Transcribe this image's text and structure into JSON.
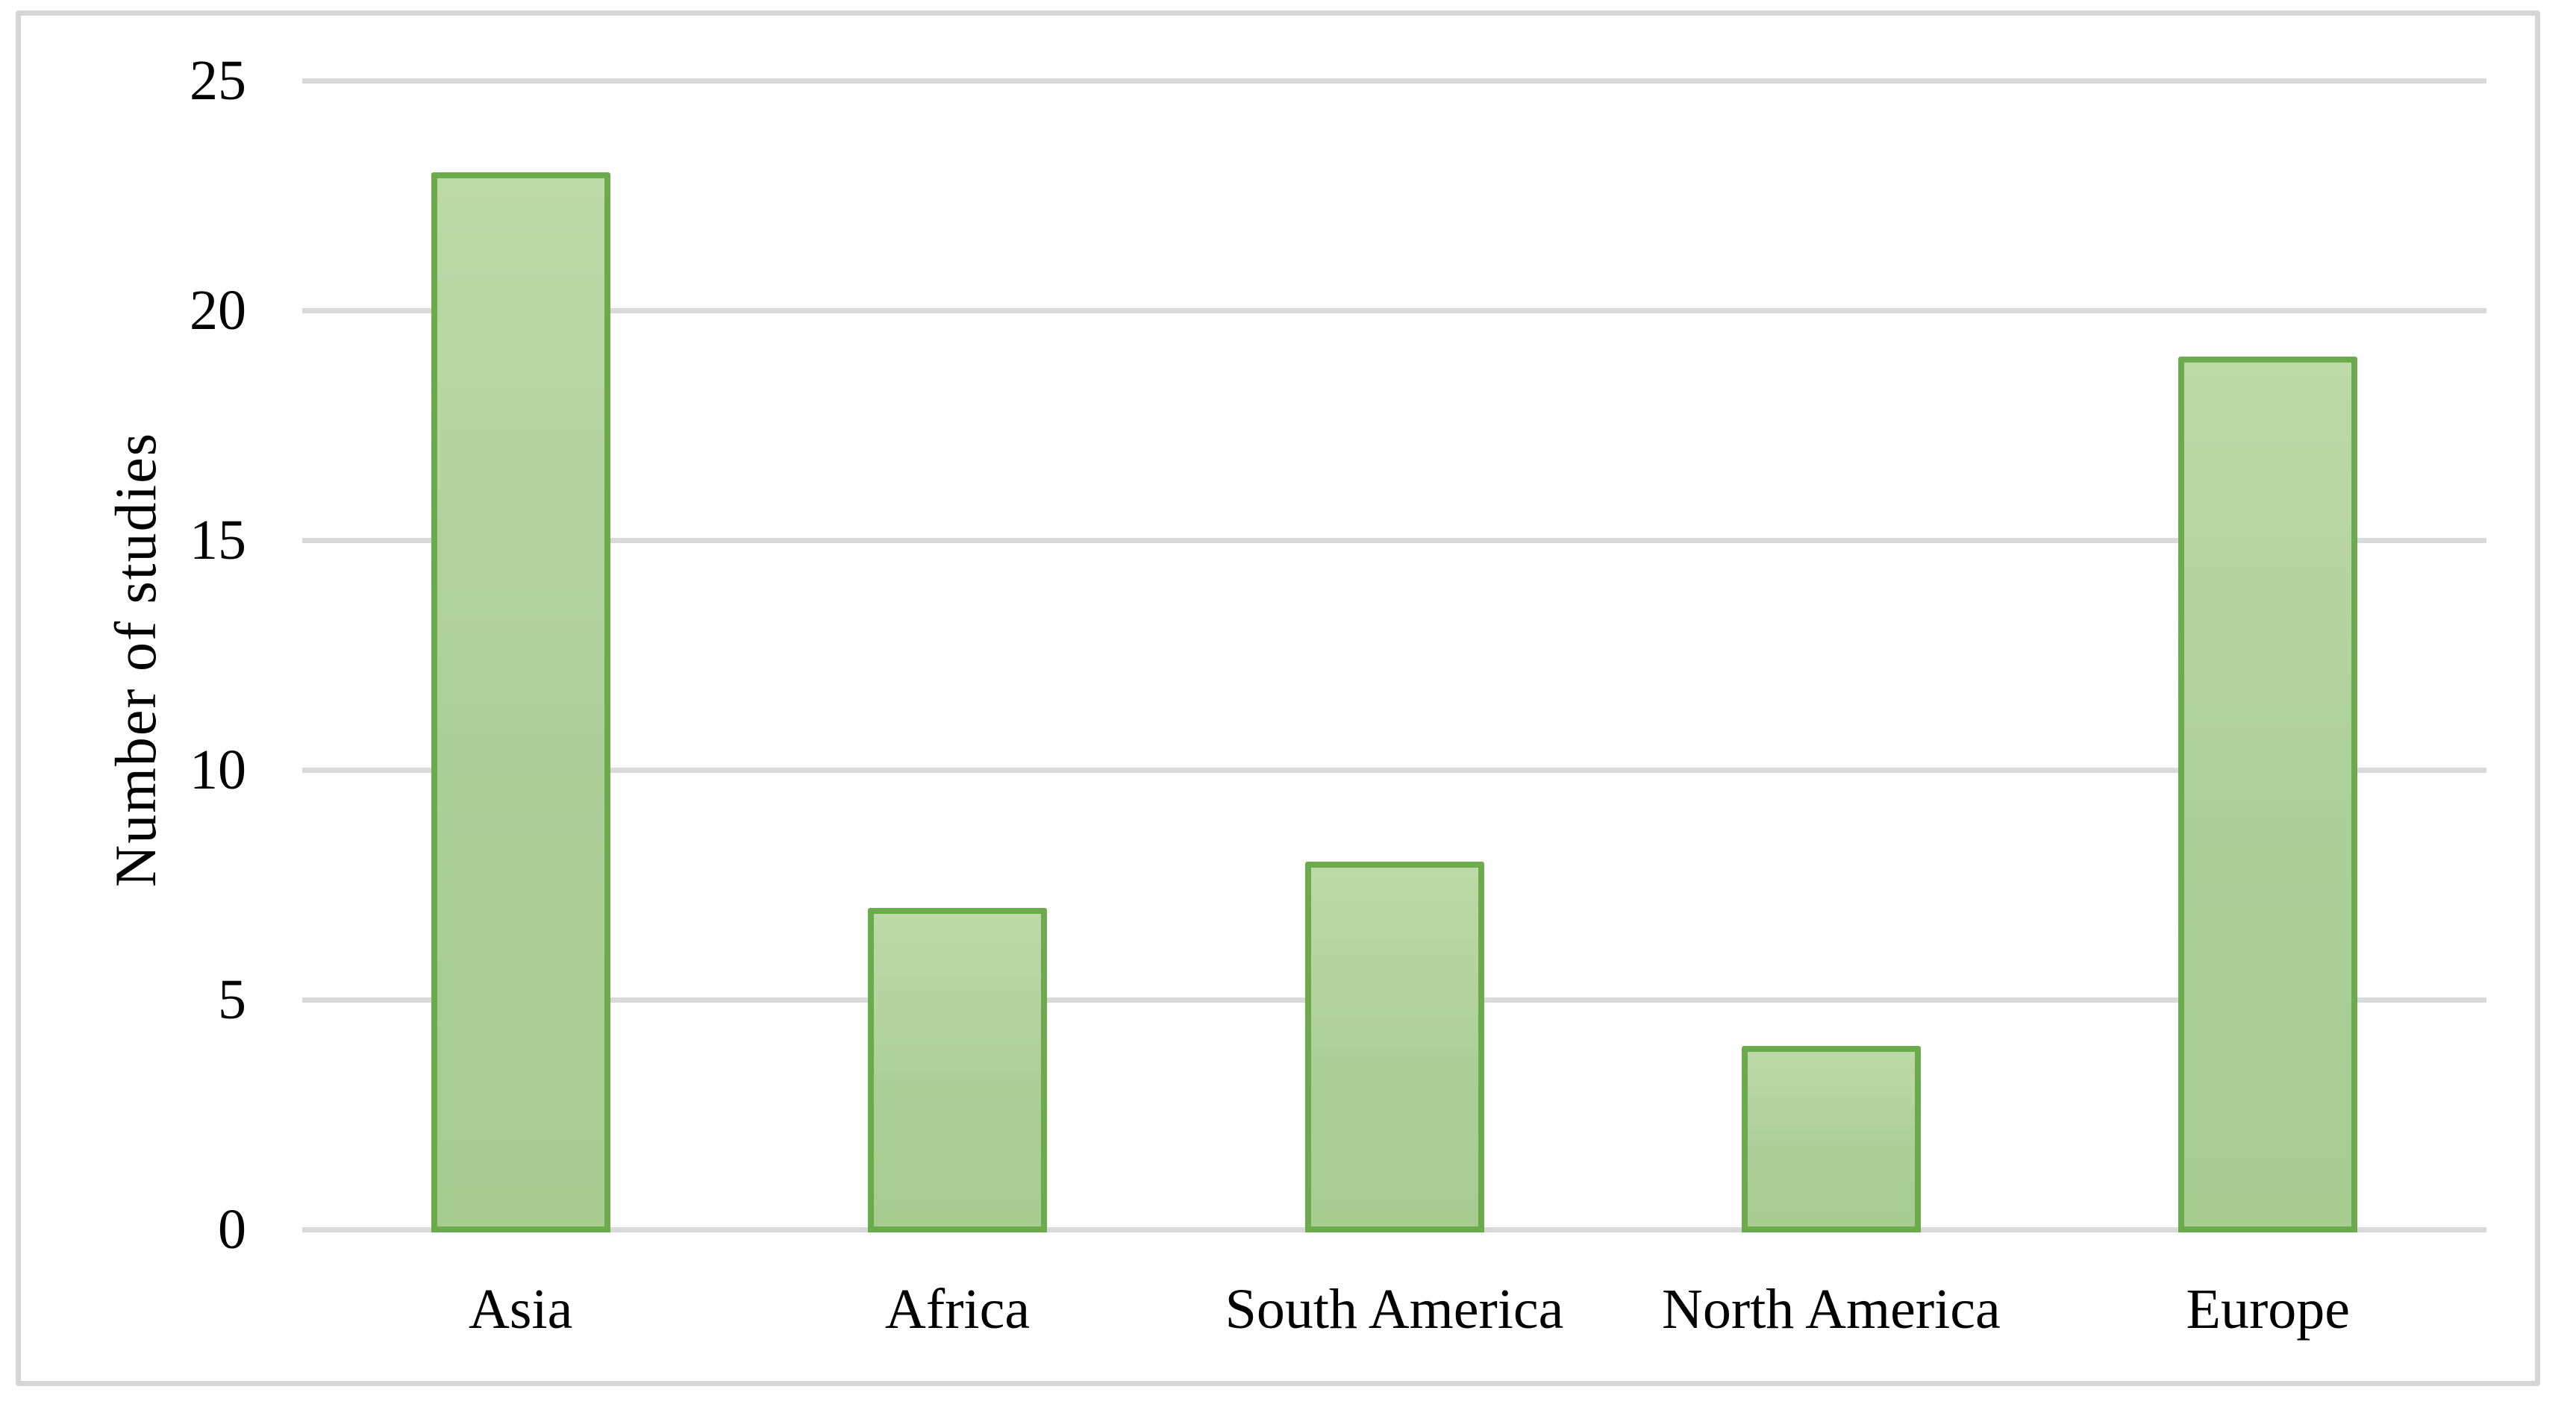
{
  "figure": {
    "background": "#ffffff",
    "frame_border_color": "#d6d6d6"
  },
  "chart_data": {
    "type": "bar",
    "title": "",
    "categories": [
      "Asia",
      "Africa",
      "South America",
      "North America",
      "Europe"
    ],
    "values": [
      23,
      7,
      8,
      4,
      19
    ],
    "xlabel": "",
    "ylabel": "Number of studies",
    "ylim": [
      0,
      25
    ],
    "yticks": [
      0,
      5,
      10,
      15,
      20,
      25
    ],
    "grid": "horizontal-major",
    "legend": "none",
    "colors": {
      "bar_fill": "#accf99",
      "bar_fill_top": "#bcd9a8",
      "bar_fill_bottom": "#a6cc90",
      "bar_border": "#6bab4c",
      "gridline": "#d9d9d9",
      "text": "#000000"
    }
  }
}
